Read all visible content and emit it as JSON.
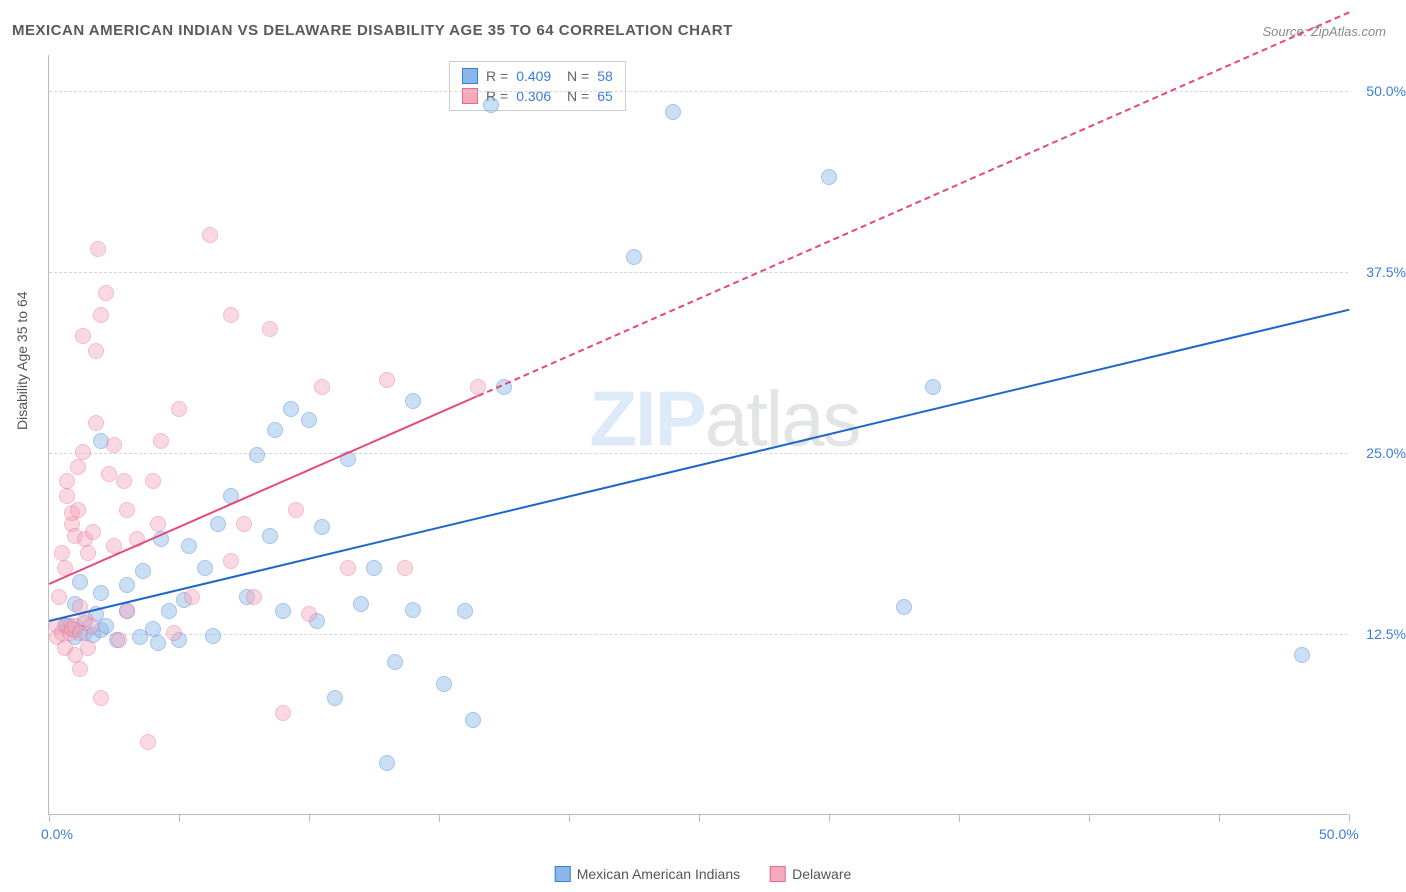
{
  "title": "MEXICAN AMERICAN INDIAN VS DELAWARE DISABILITY AGE 35 TO 64 CORRELATION CHART",
  "source": "Source: ZipAtlas.com",
  "watermark": {
    "main": "ZIP",
    "tail": "atlas"
  },
  "ylabel": "Disability Age 35 to 64",
  "chart": {
    "type": "scatter",
    "xlim": [
      0,
      50
    ],
    "ylim": [
      0,
      52.5
    ],
    "background_color": "#ffffff",
    "grid_color": "#d5d5d5",
    "x_ticks": [
      0,
      5,
      10,
      15,
      20,
      25,
      30,
      35,
      40,
      45,
      50
    ],
    "x_tick_labels": [
      {
        "pos": 0,
        "label": "0.0%"
      },
      {
        "pos": 50,
        "label": "50.0%"
      }
    ],
    "y_gridlines": [
      12.5,
      25.0,
      37.5,
      50.0
    ],
    "y_tick_labels": [
      {
        "pos": 12.5,
        "label": "12.5%"
      },
      {
        "pos": 25.0,
        "label": "25.0%"
      },
      {
        "pos": 37.5,
        "label": "37.5%"
      },
      {
        "pos": 50.0,
        "label": "50.0%"
      }
    ],
    "point_radius": 8,
    "point_opacity": 0.45,
    "series": [
      {
        "name": "Mexican American Indians",
        "color_fill": "#8bb7e8",
        "color_stroke": "#3b7dd8",
        "R": "0.409",
        "N": "58",
        "trend": {
          "color": "#1e66c7",
          "width": 2.5,
          "solid_x1": 0,
          "solid_y1": 13.5,
          "solid_x2": 50,
          "solid_y2": 35.0,
          "dash_x1": 50,
          "dash_y1": 35.0,
          "dash_x2": 50,
          "dash_y2": 35.0
        },
        "points": [
          [
            0.6,
            13.0
          ],
          [
            0.8,
            13.0
          ],
          [
            1.0,
            12.7
          ],
          [
            1.0,
            12.2
          ],
          [
            1.0,
            14.5
          ],
          [
            1.4,
            12.5
          ],
          [
            1.4,
            13.2
          ],
          [
            1.7,
            12.4
          ],
          [
            1.8,
            13.8
          ],
          [
            2.0,
            12.7
          ],
          [
            2.0,
            15.3
          ],
          [
            2.2,
            13.0
          ],
          [
            2.6,
            12.0
          ],
          [
            3.0,
            14.0
          ],
          [
            3.0,
            15.8
          ],
          [
            3.5,
            12.2
          ],
          [
            3.6,
            16.8
          ],
          [
            4.0,
            12.8
          ],
          [
            4.2,
            11.8
          ],
          [
            4.3,
            19.0
          ],
          [
            4.6,
            14.0
          ],
          [
            5.0,
            12.0
          ],
          [
            5.2,
            14.8
          ],
          [
            5.4,
            18.5
          ],
          [
            6.3,
            12.3
          ],
          [
            6.5,
            20.0
          ],
          [
            7.0,
            22.0
          ],
          [
            7.6,
            15.0
          ],
          [
            8.0,
            24.8
          ],
          [
            8.5,
            19.2
          ],
          [
            8.7,
            26.5
          ],
          [
            9.0,
            14.0
          ],
          [
            9.3,
            28.0
          ],
          [
            10.0,
            27.2
          ],
          [
            10.3,
            13.3
          ],
          [
            10.5,
            19.8
          ],
          [
            11.0,
            8.0
          ],
          [
            11.5,
            24.5
          ],
          [
            12.0,
            14.5
          ],
          [
            12.5,
            17.0
          ],
          [
            13.0,
            3.5
          ],
          [
            13.3,
            10.5
          ],
          [
            14.0,
            14.1
          ],
          [
            14.0,
            28.5
          ],
          [
            15.2,
            9.0
          ],
          [
            16.0,
            14.0
          ],
          [
            16.3,
            6.5
          ],
          [
            17.0,
            49.0
          ],
          [
            17.5,
            29.5
          ],
          [
            22.5,
            38.5
          ],
          [
            24.0,
            48.5
          ],
          [
            30.0,
            44.0
          ],
          [
            32.9,
            14.3
          ],
          [
            34.0,
            29.5
          ],
          [
            48.2,
            11.0
          ],
          [
            2.0,
            25.8
          ],
          [
            6.0,
            17.0
          ],
          [
            1.2,
            16.0
          ]
        ]
      },
      {
        "name": "Delaware",
        "color_fill": "#f4a9bd",
        "color_stroke": "#e86b8f",
        "R": "0.306",
        "N": "65",
        "trend": {
          "color": "#e5487a",
          "width": 2.5,
          "solid_x1": 0,
          "solid_y1": 16.0,
          "solid_x2": 16.5,
          "solid_y2": 29.0,
          "dash_x1": 16.5,
          "dash_y1": 29.0,
          "dash_x2": 50,
          "dash_y2": 55.5
        },
        "points": [
          [
            0.3,
            13.0
          ],
          [
            0.3,
            12.2
          ],
          [
            0.4,
            15.0
          ],
          [
            0.5,
            12.5
          ],
          [
            0.5,
            18.0
          ],
          [
            0.6,
            11.5
          ],
          [
            0.6,
            17.0
          ],
          [
            0.7,
            13.0
          ],
          [
            0.7,
            22.0
          ],
          [
            0.7,
            23.0
          ],
          [
            0.8,
            12.5
          ],
          [
            0.9,
            12.8
          ],
          [
            0.9,
            20.0
          ],
          [
            0.9,
            20.8
          ],
          [
            1.0,
            11.0
          ],
          [
            1.0,
            13.0
          ],
          [
            1.0,
            19.2
          ],
          [
            1.1,
            21.0
          ],
          [
            1.1,
            24.0
          ],
          [
            1.2,
            10.0
          ],
          [
            1.2,
            12.5
          ],
          [
            1.2,
            14.3
          ],
          [
            1.3,
            25.0
          ],
          [
            1.3,
            33.0
          ],
          [
            1.4,
            13.5
          ],
          [
            1.4,
            19.0
          ],
          [
            1.5,
            11.5
          ],
          [
            1.5,
            18.0
          ],
          [
            1.6,
            13.0
          ],
          [
            1.7,
            19.5
          ],
          [
            1.8,
            27.0
          ],
          [
            1.8,
            32.0
          ],
          [
            1.9,
            39.0
          ],
          [
            2.0,
            34.5
          ],
          [
            2.0,
            8.0
          ],
          [
            2.2,
            36.0
          ],
          [
            2.3,
            23.5
          ],
          [
            2.5,
            18.5
          ],
          [
            2.5,
            25.5
          ],
          [
            2.7,
            12.0
          ],
          [
            2.9,
            23.0
          ],
          [
            3.0,
            21.0
          ],
          [
            3.0,
            14.0
          ],
          [
            3.4,
            19.0
          ],
          [
            3.8,
            5.0
          ],
          [
            4.0,
            23.0
          ],
          [
            4.2,
            20.0
          ],
          [
            4.3,
            25.8
          ],
          [
            4.8,
            12.5
          ],
          [
            5.0,
            28.0
          ],
          [
            5.5,
            15.0
          ],
          [
            6.2,
            40.0
          ],
          [
            7.0,
            17.5
          ],
          [
            7.0,
            34.5
          ],
          [
            7.5,
            20.0
          ],
          [
            7.9,
            15.0
          ],
          [
            8.5,
            33.5
          ],
          [
            9.0,
            7.0
          ],
          [
            9.5,
            21.0
          ],
          [
            10.0,
            13.8
          ],
          [
            10.5,
            29.5
          ],
          [
            11.5,
            17.0
          ],
          [
            13.0,
            30.0
          ],
          [
            13.7,
            17.0
          ],
          [
            16.5,
            29.5
          ]
        ]
      }
    ]
  },
  "legend_bottom": [
    {
      "label": "Mexican American Indians",
      "fill": "#8bb7e8",
      "stroke": "#3b7dd8"
    },
    {
      "label": "Delaware",
      "fill": "#f4a9bd",
      "stroke": "#e86b8f"
    }
  ]
}
